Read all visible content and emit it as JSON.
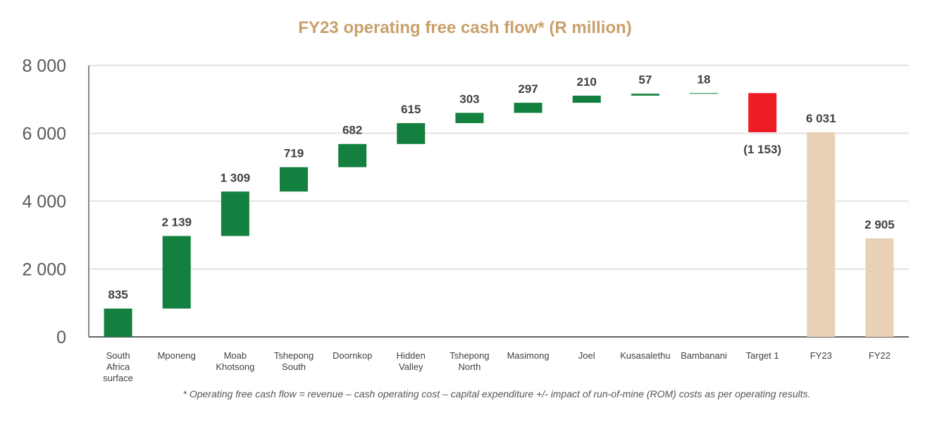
{
  "chart_data": {
    "type": "waterfall",
    "title": "FY23 operating free cash flow* (R million)",
    "footnote": "* Operating free cash flow = revenue – cash operating cost – capital expenditure +/- impact of run-of-mine (ROM) costs as per operating results.",
    "ylim": [
      0,
      8000
    ],
    "yticks": [
      0,
      2000,
      4000,
      6000,
      8000
    ],
    "ytick_labels": [
      "0",
      "2 000",
      "4 000",
      "6 000",
      "8 000"
    ],
    "grid": true,
    "categories": [
      [
        "South",
        "Africa",
        "surface"
      ],
      [
        "Mponeng"
      ],
      [
        "Moab",
        "Khotsong"
      ],
      [
        "Tshepong",
        "South"
      ],
      [
        "Doornkop"
      ],
      [
        "Hidden",
        "Valley"
      ],
      [
        "Tshepong",
        "North"
      ],
      [
        "Masimong"
      ],
      [
        "Joel"
      ],
      [
        "Kusasalethu"
      ],
      [
        "Bambanani"
      ],
      [
        "Target 1"
      ],
      [
        "FY23"
      ],
      [
        "FY22"
      ]
    ],
    "values": [
      835,
      2139,
      1309,
      719,
      682,
      615,
      303,
      297,
      210,
      57,
      18,
      -1153,
      6031,
      2905
    ],
    "kinds": [
      "delta",
      "delta",
      "delta",
      "delta",
      "delta",
      "delta",
      "delta",
      "delta",
      "delta",
      "delta",
      "delta",
      "delta",
      "total",
      "total"
    ],
    "data_labels": [
      "835",
      "2 139",
      "1 309",
      "719",
      "682",
      "615",
      "303",
      "297",
      "210",
      "57",
      "18",
      "(1 153)",
      "6 031",
      "2 905"
    ],
    "colors": {
      "increase": "#13803F",
      "decrease": "#ED1C24",
      "total": "#E8D1B5",
      "title": "#C9A06B"
    }
  }
}
